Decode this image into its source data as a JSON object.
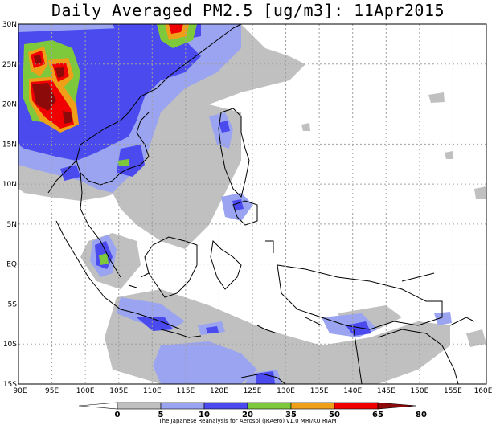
{
  "title": "Daily Averaged PM2.5 [ug/m3]: 11Apr2015",
  "map": {
    "lon_range": [
      90,
      160
    ],
    "lat_range": [
      -15,
      30
    ],
    "lon_ticks": [
      {
        "v": 90,
        "label": "90E"
      },
      {
        "v": 95,
        "label": "95E"
      },
      {
        "v": 100,
        "label": "100E"
      },
      {
        "v": 105,
        "label": "105E"
      },
      {
        "v": 110,
        "label": "110E"
      },
      {
        "v": 115,
        "label": "115E"
      },
      {
        "v": 120,
        "label": "120E"
      },
      {
        "v": 125,
        "label": "125E"
      },
      {
        "v": 130,
        "label": "130E"
      },
      {
        "v": 135,
        "label": "135E"
      },
      {
        "v": 140,
        "label": "140E"
      },
      {
        "v": 145,
        "label": "145E"
      },
      {
        "v": 150,
        "label": "150E"
      },
      {
        "v": 155,
        "label": "155E"
      },
      {
        "v": 160,
        "label": "160E"
      }
    ],
    "lat_ticks": [
      {
        "v": 30,
        "label": "30N"
      },
      {
        "v": 25,
        "label": "25N"
      },
      {
        "v": 20,
        "label": "20N"
      },
      {
        "v": 15,
        "label": "15N"
      },
      {
        "v": 10,
        "label": "10N"
      },
      {
        "v": 5,
        "label": "5N"
      },
      {
        "v": 0,
        "label": "EQ"
      },
      {
        "v": -5,
        "label": "5S"
      },
      {
        "v": -10,
        "label": "10S"
      },
      {
        "v": -15,
        "label": "15S"
      }
    ]
  },
  "colorbar": {
    "levels": [
      "0",
      "5",
      "10",
      "20",
      "35",
      "50",
      "65",
      "80"
    ],
    "colors": [
      "#ffffff",
      "#c0c0c0",
      "#9aa4f0",
      "#4a4aef",
      "#7ec83c",
      "#f0a018",
      "#f00000",
      "#8c0a0a"
    ]
  },
  "credit": "The Japanese Reanalysis for Aerosol (JRAero) v1.0 MRI/KU RIAM"
}
